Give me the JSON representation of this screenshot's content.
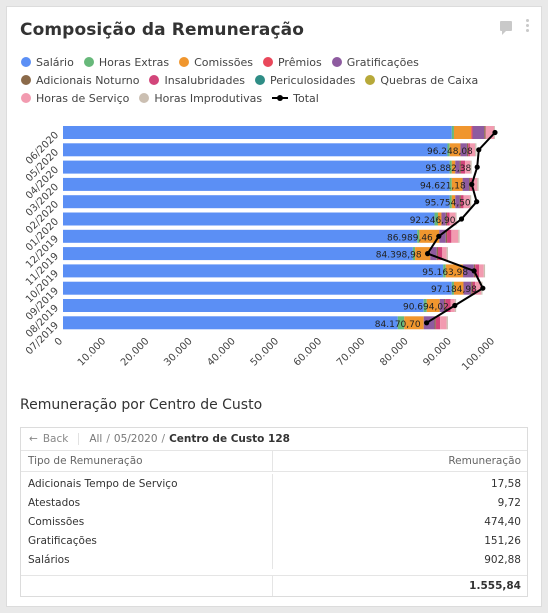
{
  "header": {
    "title": "Composição da Remuneração"
  },
  "legend": [
    {
      "label": "Salário",
      "color": "#5b8ff5"
    },
    {
      "label": "Horas Extras",
      "color": "#67b87a"
    },
    {
      "label": "Comissões",
      "color": "#f0962e"
    },
    {
      "label": "Prêmios",
      "color": "#e9485b"
    },
    {
      "label": "Gratificações",
      "color": "#8e5ba0"
    },
    {
      "label": "Adicionais Noturno",
      "color": "#8b6a4a"
    },
    {
      "label": "Insalubridades",
      "color": "#d2457a"
    },
    {
      "label": "Periculosidades",
      "color": "#2f8d86"
    },
    {
      "label": "Quebras de Caixa",
      "color": "#b7a93a"
    },
    {
      "label": "Horas de Serviço",
      "color": "#f29bb0"
    },
    {
      "label": "Horas Improdutivas",
      "color": "#cbbfb2"
    },
    {
      "label": "Total",
      "color": "#000000"
    }
  ],
  "chart_data": {
    "type": "bar",
    "orientation": "horizontal",
    "stacked": true,
    "categories": [
      "06/2020",
      "05/2020",
      "04/2020",
      "03/2020",
      "02/2020",
      "01/2020",
      "12/2019",
      "11/2019",
      "10/2019",
      "09/2019",
      "08/2019",
      "07/2019"
    ],
    "xlim": [
      0,
      100000
    ],
    "xticks": [
      "0",
      "10.000",
      "20.000",
      "30.000",
      "40.000",
      "50.000",
      "60.000",
      "70.000",
      "80.000",
      "90.000",
      "100.000"
    ],
    "series": [
      {
        "name": "Salário",
        "values": [
          90000,
          89000,
          89500,
          89500,
          89500,
          86000,
          82000,
          81000,
          88000,
          90000,
          83500,
          77500
        ]
      },
      {
        "name": "Horas Extras",
        "values": [
          500,
          500,
          500,
          500,
          500,
          800,
          500,
          500,
          600,
          500,
          700,
          1500
        ]
      },
      {
        "name": "Comissões",
        "values": [
          4000,
          2500,
          800,
          2500,
          800,
          800,
          4600,
          3500,
          4000,
          2200,
          3000,
          4500
        ]
      },
      {
        "name": "Prêmios",
        "values": [
          300,
          0,
          0,
          0,
          0,
          0,
          0,
          0,
          0,
          0,
          0,
          0
        ]
      },
      {
        "name": "Gratificações",
        "values": [
          2700,
          1500,
          1000,
          1500,
          1000,
          1000,
          1500,
          1500,
          2500,
          1800,
          1000,
          2500
        ]
      },
      {
        "name": "Adicionais Noturno",
        "values": [
          300,
          300,
          300,
          300,
          300,
          300,
          300,
          300,
          300,
          300,
          300,
          300
        ]
      },
      {
        "name": "Insalubridades",
        "values": [
          0,
          400,
          1000,
          400,
          600,
          600,
          1000,
          1000,
          900,
          600,
          1200,
          1000
        ]
      },
      {
        "name": "Periculosidades",
        "values": [
          0,
          0,
          0,
          0,
          0,
          0,
          0,
          0,
          0,
          0,
          0,
          0
        ]
      },
      {
        "name": "Quebras de Caixa",
        "values": [
          0,
          0,
          0,
          0,
          0,
          0,
          0,
          0,
          0,
          0,
          0,
          0
        ]
      },
      {
        "name": "Horas de Serviço",
        "values": [
          2000,
          1200,
          1200,
          1200,
          1500,
          1400,
          1600,
          1000,
          1100,
          1400,
          1000,
          1500
        ]
      },
      {
        "name": "Horas Improdutivas",
        "values": [
          200,
          300,
          300,
          300,
          300,
          200,
          300,
          300,
          300,
          300,
          300,
          300
        ]
      }
    ],
    "total": {
      "name": "Total",
      "values": [
        100000,
        96248.08,
        95882.38,
        94621.18,
        95754.5,
        92246.9,
        86989.46,
        84398.98,
        95163.98,
        97184.98,
        90694.02,
        84170.7
      ],
      "labels": [
        "",
        "96.248,08",
        "95.882,38",
        "94.621,18",
        "95.754,50",
        "92.246,90",
        "86.989,46",
        "84.398,98",
        "95.163,98",
        "97.184,98",
        "90.694,02",
        "84.170,70"
      ]
    },
    "grid": false,
    "legend_position": "top"
  },
  "table_section": {
    "title": "Remuneração por Centro de Custo",
    "back_label": "Back",
    "crumb_all": "All",
    "crumb_period": "05/2020",
    "crumb_current": "Centro de Custo 128",
    "col_type": "Tipo de Remuneração",
    "col_value": "Remuneração",
    "rows": [
      {
        "type": "Adicionais Tempo de Serviço",
        "value": "17,58"
      },
      {
        "type": "Atestados",
        "value": "9,72"
      },
      {
        "type": "Comissões",
        "value": "474,40"
      },
      {
        "type": "Gratificações",
        "value": "151,26"
      },
      {
        "type": "Salários",
        "value": "902,88"
      }
    ],
    "total": "1.555,84"
  }
}
